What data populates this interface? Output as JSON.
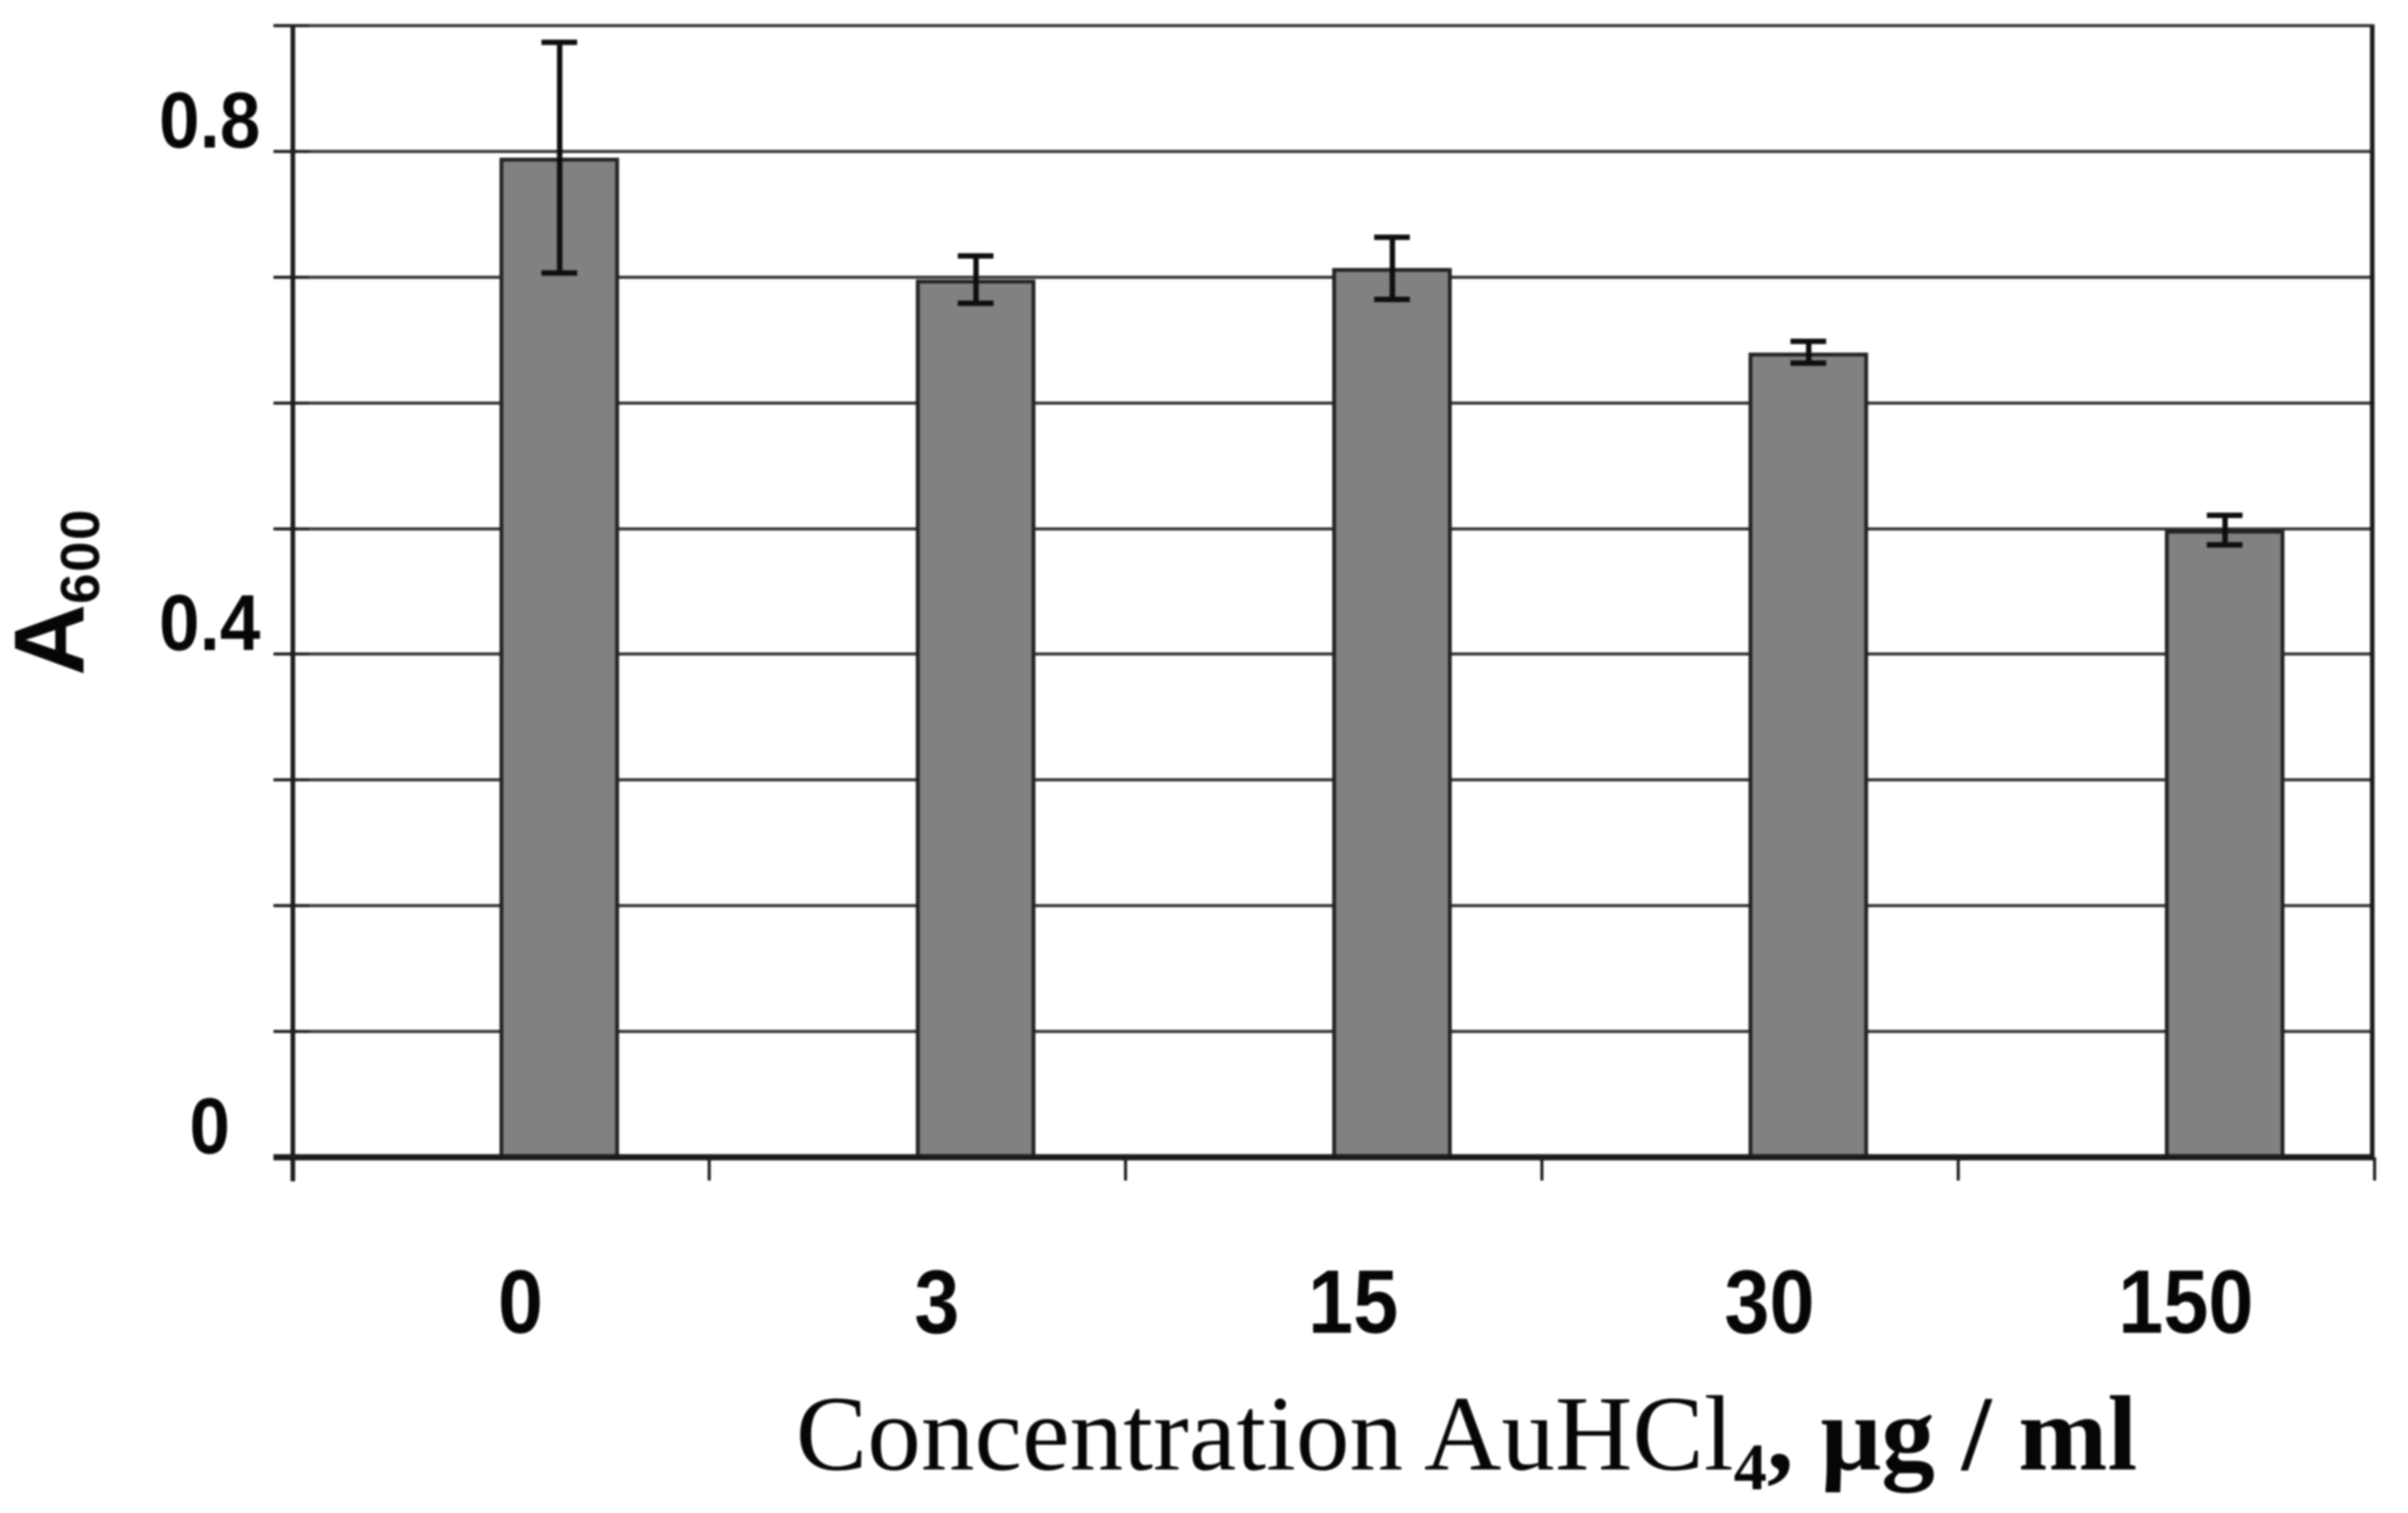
{
  "figure": {
    "background_color": "#ffffff"
  },
  "chart_data": {
    "type": "bar",
    "title": "",
    "xlabel": {
      "prefix": "Concentration AuHCl",
      "subscript": "4",
      "suffix": ", μg / ml"
    },
    "ylabel": {
      "main": "A",
      "subscript": "600"
    },
    "categories": [
      "0",
      "3",
      "15",
      "30",
      "150"
    ],
    "values": [
      0.795,
      0.698,
      0.707,
      0.64,
      0.499
    ],
    "error_bars": [
      0.092,
      0.019,
      0.025,
      0.009,
      0.012
    ],
    "ylim": [
      0,
      0.9
    ],
    "gridline_step": 0.1,
    "yticks": [
      {
        "value": 0.8,
        "label": "0.8"
      },
      {
        "value": 0.4,
        "label": "0.4"
      },
      {
        "value": 0,
        "label": "0"
      }
    ],
    "grid": "horizontal",
    "legend": "none",
    "bar_color": "#818181",
    "bar_border_color": "#262626",
    "gridline_color": "#333333",
    "axis_color": "#1f1f1f",
    "error_bar_color": "#111111",
    "text_color": "#0a0a0a"
  }
}
